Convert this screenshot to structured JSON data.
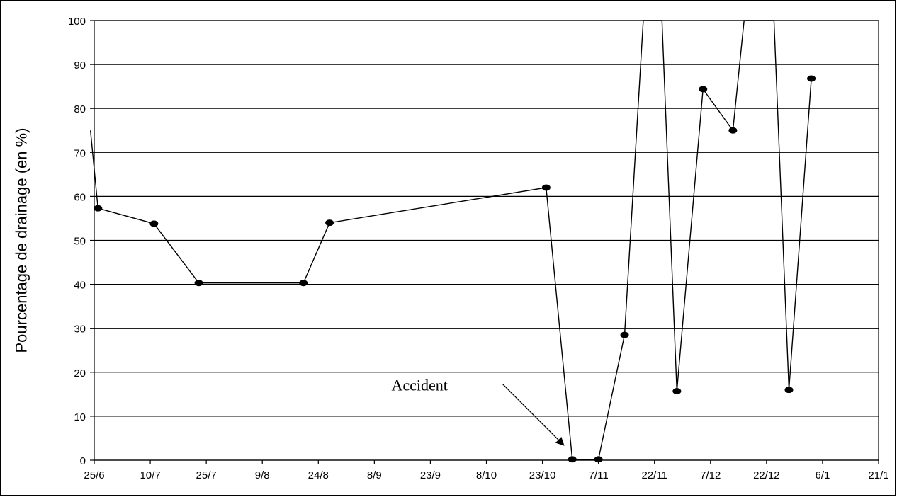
{
  "chart_data": {
    "type": "line",
    "title": "",
    "xlabel": "",
    "ylabel": "Pourcentage de drainage (en %)",
    "ylim": [
      0,
      100
    ],
    "xlim": [
      "2007-06-25",
      "2008-01-21"
    ],
    "yticks": [
      0,
      10,
      20,
      30,
      40,
      50,
      60,
      70,
      80,
      90,
      100
    ],
    "xtick_labels": [
      "25/6",
      "10/7",
      "25/7",
      "9/8",
      "24/8",
      "8/9",
      "23/9",
      "8/10",
      "23/10",
      "7/11",
      "22/11",
      "7/12",
      "22/12",
      "6/1",
      "21/1"
    ],
    "xtick_dates": [
      "2007-06-25",
      "2007-07-10",
      "2007-07-25",
      "2007-08-09",
      "2007-08-24",
      "2007-09-08",
      "2007-09-23",
      "2007-10-08",
      "2007-10-23",
      "2007-11-07",
      "2007-11-22",
      "2007-12-07",
      "2007-12-22",
      "2008-01-06",
      "2008-01-21"
    ],
    "grid": "horizontal",
    "series": [
      {
        "name": "",
        "color": "#000000",
        "points": [
          {
            "x": "2007-06-24",
            "y": 75,
            "marker": false
          },
          {
            "x": "2007-06-26",
            "y": 57.3,
            "marker": true
          },
          {
            "x": "2007-07-11",
            "y": 53.8,
            "marker": true
          },
          {
            "x": "2007-07-23",
            "y": 40.3,
            "marker": true
          },
          {
            "x": "2007-08-20",
            "y": 40.3,
            "marker": true
          },
          {
            "x": "2007-08-27",
            "y": 54.0,
            "marker": true
          },
          {
            "x": "2007-10-24",
            "y": 62.0,
            "marker": true
          },
          {
            "x": "2007-10-31",
            "y": 0.2,
            "marker": true
          },
          {
            "x": "2007-11-07",
            "y": 0.2,
            "marker": true
          },
          {
            "x": "2007-11-14",
            "y": 28.5,
            "marker": true
          },
          {
            "x": "2007-11-19",
            "y": 100,
            "marker": false
          },
          {
            "x": "2007-11-24",
            "y": 100,
            "marker": false
          },
          {
            "x": "2007-11-28",
            "y": 15.7,
            "marker": true
          },
          {
            "x": "2007-12-05",
            "y": 84.4,
            "marker": true
          },
          {
            "x": "2007-12-13",
            "y": 75.0,
            "marker": true
          },
          {
            "x": "2007-12-16",
            "y": 100,
            "marker": false
          },
          {
            "x": "2007-12-24",
            "y": 100,
            "marker": false
          },
          {
            "x": "2007-12-28",
            "y": 16.0,
            "marker": true
          },
          {
            "x": "2008-01-03",
            "y": 86.8,
            "marker": true
          }
        ]
      }
    ],
    "annotations": [
      {
        "text": "Accident",
        "points_to": {
          "x": "2007-10-30",
          "y": 2
        }
      }
    ]
  }
}
